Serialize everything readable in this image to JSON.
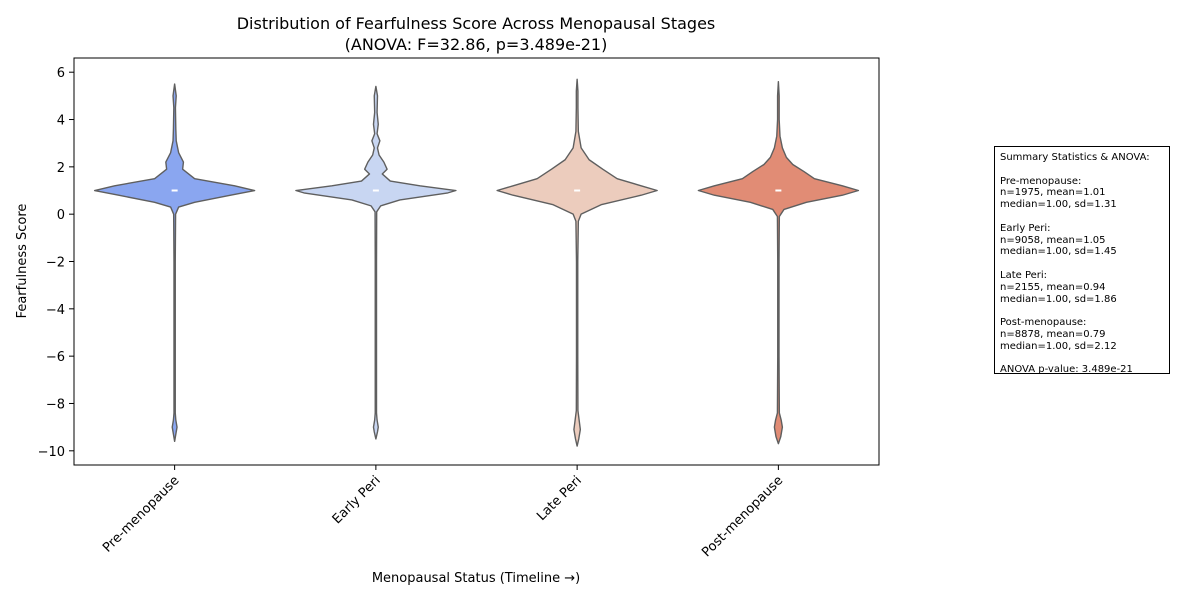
{
  "chart_data": {
    "type": "violin",
    "title_line1": "Distribution of Fearfulness Score Across Menopausal Stages",
    "title_line2": "(ANOVA: F=32.86, p=3.489e-21)",
    "xlabel": "Menopausal Status (Timeline →)",
    "ylabel": "Fearfulness Score",
    "ylim": [
      -10.6,
      6.6
    ],
    "yticks": [
      6,
      4,
      2,
      0,
      -2,
      -4,
      -6,
      -8,
      -10
    ],
    "ytick_labels": [
      "6",
      "4",
      "2",
      "0",
      "−2",
      "−4",
      "−6",
      "−8",
      "−10"
    ],
    "categories": [
      "Pre-menopause",
      "Early Peri",
      "Late Peri",
      "Post-menopause"
    ],
    "grid": false,
    "series": [
      {
        "category": "Pre-menopause",
        "color": "#8aa6f0",
        "median": 1.0,
        "min": -9.6,
        "max": 5.5,
        "profile": [
          [
            -9.6,
            0.0
          ],
          [
            -9.3,
            0.015
          ],
          [
            -9.0,
            0.03
          ],
          [
            -8.7,
            0.015
          ],
          [
            -8.4,
            0.008
          ],
          [
            -6,
            0.008
          ],
          [
            -2,
            0.008
          ],
          [
            0.0,
            0.012
          ],
          [
            0.3,
            0.05
          ],
          [
            0.5,
            0.25
          ],
          [
            0.8,
            0.7
          ],
          [
            1.0,
            1.0
          ],
          [
            1.2,
            0.75
          ],
          [
            1.5,
            0.25
          ],
          [
            1.9,
            0.1
          ],
          [
            2.2,
            0.11
          ],
          [
            2.6,
            0.05
          ],
          [
            3.1,
            0.02
          ],
          [
            3.6,
            0.015
          ],
          [
            4.5,
            0.01
          ],
          [
            5.0,
            0.02
          ],
          [
            5.5,
            0.0
          ]
        ]
      },
      {
        "category": "Early Peri",
        "color": "#c8d6f2",
        "median": 1.0,
        "min": -9.5,
        "max": 5.4,
        "profile": [
          [
            -9.5,
            0.0
          ],
          [
            -9.2,
            0.02
          ],
          [
            -9.0,
            0.03
          ],
          [
            -8.7,
            0.015
          ],
          [
            -8.4,
            0.008
          ],
          [
            -6,
            0.008
          ],
          [
            -2,
            0.008
          ],
          [
            0.1,
            0.01
          ],
          [
            0.35,
            0.06
          ],
          [
            0.6,
            0.3
          ],
          [
            0.9,
            0.9
          ],
          [
            1.0,
            1.0
          ],
          [
            1.2,
            0.55
          ],
          [
            1.4,
            0.18
          ],
          [
            1.7,
            0.08
          ],
          [
            1.9,
            0.14
          ],
          [
            2.2,
            0.1
          ],
          [
            2.5,
            0.04
          ],
          [
            2.8,
            0.02
          ],
          [
            3.1,
            0.05
          ],
          [
            3.4,
            0.015
          ],
          [
            3.8,
            0.03
          ],
          [
            4.3,
            0.015
          ],
          [
            5.0,
            0.02
          ],
          [
            5.4,
            0.0
          ]
        ]
      },
      {
        "category": "Late Peri",
        "color": "#ecccbd",
        "median": 1.0,
        "min": -9.8,
        "max": 5.7,
        "profile": [
          [
            -9.8,
            0.0
          ],
          [
            -9.5,
            0.02
          ],
          [
            -9.1,
            0.04
          ],
          [
            -8.7,
            0.025
          ],
          [
            -8.3,
            0.01
          ],
          [
            -6,
            0.008
          ],
          [
            -2,
            0.008
          ],
          [
            -0.3,
            0.015
          ],
          [
            0.0,
            0.05
          ],
          [
            0.4,
            0.3
          ],
          [
            0.8,
            0.8
          ],
          [
            1.0,
            1.0
          ],
          [
            1.2,
            0.8
          ],
          [
            1.5,
            0.5
          ],
          [
            1.9,
            0.32
          ],
          [
            2.3,
            0.15
          ],
          [
            2.8,
            0.05
          ],
          [
            3.5,
            0.015
          ],
          [
            4.5,
            0.01
          ],
          [
            5.2,
            0.01
          ],
          [
            5.7,
            0.0
          ]
        ]
      },
      {
        "category": "Post-menopause",
        "color": "#e18c75",
        "median": 1.0,
        "min": -9.7,
        "max": 5.6,
        "profile": [
          [
            -9.7,
            0.0
          ],
          [
            -9.4,
            0.03
          ],
          [
            -9.0,
            0.05
          ],
          [
            -8.7,
            0.035
          ],
          [
            -8.4,
            0.012
          ],
          [
            -6,
            0.008
          ],
          [
            -2,
            0.008
          ],
          [
            -0.1,
            0.012
          ],
          [
            0.2,
            0.07
          ],
          [
            0.5,
            0.35
          ],
          [
            0.8,
            0.8
          ],
          [
            1.0,
            1.0
          ],
          [
            1.2,
            0.8
          ],
          [
            1.5,
            0.45
          ],
          [
            1.8,
            0.32
          ],
          [
            2.1,
            0.18
          ],
          [
            2.4,
            0.1
          ],
          [
            2.8,
            0.05
          ],
          [
            3.3,
            0.02
          ],
          [
            4.0,
            0.01
          ],
          [
            5.0,
            0.01
          ],
          [
            5.6,
            0.0
          ]
        ]
      }
    ]
  },
  "stats_box": {
    "lines": [
      "Summary Statistics & ANOVA:",
      "",
      "Pre-menopause:",
      "n=1975, mean=1.01",
      "median=1.00, sd=1.31",
      "",
      "Early Peri:",
      "n=9058, mean=1.05",
      "median=1.00, sd=1.45",
      "",
      "Late Peri:",
      "n=2155, mean=0.94",
      "median=1.00, sd=1.86",
      "",
      "Post-menopause:",
      "n=8878, mean=0.79",
      "median=1.00, sd=2.12",
      "",
      "ANOVA p-value: 3.489e-21"
    ]
  }
}
